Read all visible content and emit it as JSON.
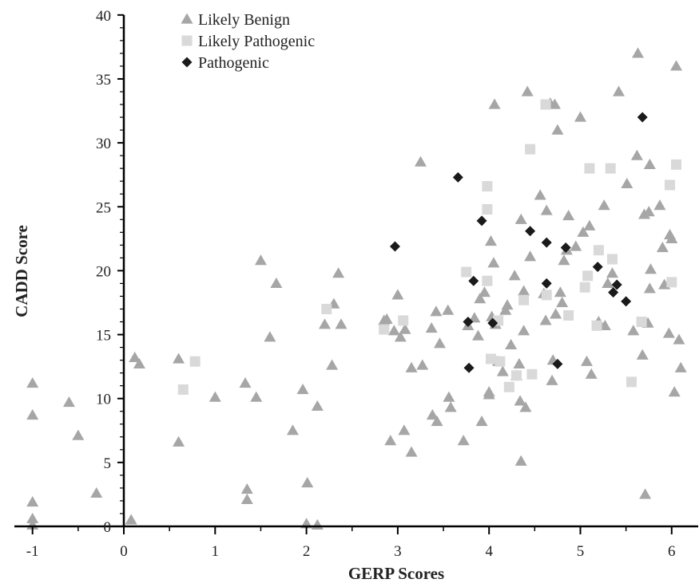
{
  "chart_data": {
    "type": "scatter",
    "title": "",
    "xlabel": "GERP Scores",
    "ylabel": "CADD Score",
    "xlim": [
      -1.1,
      6.3
    ],
    "ylim": [
      0,
      40
    ],
    "x_ticks": [
      -1,
      0,
      1,
      2,
      3,
      4,
      5,
      6
    ],
    "y_ticks": [
      0,
      5,
      10,
      15,
      20,
      25,
      30,
      35,
      40
    ],
    "grid": false,
    "legend_position": "top-left",
    "series": [
      {
        "name": "Likely Benign",
        "marker": "triangle",
        "color": "#a6a6a6",
        "points": [
          [
            -1,
            0.1
          ],
          [
            -1,
            0.6
          ],
          [
            -1,
            1.9
          ],
          [
            -1,
            8.7
          ],
          [
            -1,
            11.2
          ],
          [
            -0.6,
            9.7
          ],
          [
            -0.5,
            7.1
          ],
          [
            -0.3,
            2.6
          ],
          [
            0.08,
            0.5
          ],
          [
            0.12,
            13.2
          ],
          [
            0.17,
            12.7
          ],
          [
            0.6,
            13.1
          ],
          [
            0.6,
            6.6
          ],
          [
            1.0,
            10.1
          ],
          [
            1.33,
            11.2
          ],
          [
            1.35,
            2.9
          ],
          [
            1.35,
            2.1
          ],
          [
            1.45,
            10.1
          ],
          [
            1.5,
            20.8
          ],
          [
            1.6,
            14.8
          ],
          [
            1.67,
            19.0
          ],
          [
            1.85,
            7.5
          ],
          [
            1.96,
            10.7
          ],
          [
            2.0,
            0.2
          ],
          [
            2.01,
            3.4
          ],
          [
            2.12,
            0.1
          ],
          [
            2.12,
            9.4
          ],
          [
            2.2,
            15.8
          ],
          [
            2.28,
            12.6
          ],
          [
            2.3,
            17.4
          ],
          [
            2.35,
            19.8
          ],
          [
            2.38,
            15.8
          ],
          [
            2.85,
            16.1
          ],
          [
            2.88,
            16.2
          ],
          [
            2.92,
            6.7
          ],
          [
            2.96,
            15.3
          ],
          [
            3.0,
            18.1
          ],
          [
            3.03,
            14.8
          ],
          [
            3.07,
            7.5
          ],
          [
            3.08,
            15.4
          ],
          [
            3.15,
            12.4
          ],
          [
            3.15,
            5.8
          ],
          [
            3.25,
            28.5
          ],
          [
            3.27,
            12.6
          ],
          [
            3.37,
            15.5
          ],
          [
            3.38,
            8.7
          ],
          [
            3.42,
            16.8
          ],
          [
            3.43,
            8.2
          ],
          [
            3.46,
            14.3
          ],
          [
            3.55,
            16.9
          ],
          [
            3.56,
            10.1
          ],
          [
            3.58,
            9.3
          ],
          [
            3.72,
            6.7
          ],
          [
            3.77,
            15.7
          ],
          [
            3.84,
            16.3
          ],
          [
            3.88,
            14.9
          ],
          [
            3.9,
            17.8
          ],
          [
            3.92,
            8.2
          ],
          [
            3.95,
            18.3
          ],
          [
            4.0,
            10.5
          ],
          [
            4.0,
            10.3
          ],
          [
            4.02,
            22.3
          ],
          [
            4.03,
            16.4
          ],
          [
            4.05,
            20.6
          ],
          [
            4.06,
            33.0
          ],
          [
            4.07,
            15.8
          ],
          [
            4.1,
            12.9
          ],
          [
            4.15,
            12.1
          ],
          [
            4.18,
            16.9
          ],
          [
            4.2,
            17.3
          ],
          [
            4.24,
            14.2
          ],
          [
            4.28,
            19.6
          ],
          [
            4.3,
            11.8
          ],
          [
            4.33,
            12.7
          ],
          [
            4.34,
            9.8
          ],
          [
            4.35,
            5.1
          ],
          [
            4.35,
            24.0
          ],
          [
            4.38,
            15.3
          ],
          [
            4.38,
            18.4
          ],
          [
            4.4,
            9.3
          ],
          [
            4.42,
            34.0
          ],
          [
            4.45,
            21.1
          ],
          [
            4.56,
            25.9
          ],
          [
            4.6,
            18.2
          ],
          [
            4.62,
            16.1
          ],
          [
            4.63,
            24.7
          ],
          [
            4.67,
            33.1
          ],
          [
            4.69,
            11.4
          ],
          [
            4.7,
            13.0
          ],
          [
            4.72,
            33.0
          ],
          [
            4.73,
            16.6
          ],
          [
            4.75,
            31.0
          ],
          [
            4.78,
            18.3
          ],
          [
            4.8,
            17.5
          ],
          [
            4.82,
            20.8
          ],
          [
            4.85,
            21.6
          ],
          [
            4.87,
            24.3
          ],
          [
            4.95,
            21.9
          ],
          [
            5.0,
            32.0
          ],
          [
            5.03,
            23.0
          ],
          [
            5.07,
            12.9
          ],
          [
            5.1,
            23.5
          ],
          [
            5.12,
            11.9
          ],
          [
            5.2,
            16.0
          ],
          [
            5.26,
            25.1
          ],
          [
            5.27,
            15.7
          ],
          [
            5.3,
            19.0
          ],
          [
            5.35,
            19.8
          ],
          [
            5.42,
            34.0
          ],
          [
            5.51,
            26.8
          ],
          [
            5.58,
            15.3
          ],
          [
            5.62,
            29.0
          ],
          [
            5.63,
            37.0
          ],
          [
            5.68,
            13.4
          ],
          [
            5.7,
            24.4
          ],
          [
            5.71,
            2.5
          ],
          [
            5.74,
            15.9
          ],
          [
            5.75,
            24.6
          ],
          [
            5.76,
            28.3
          ],
          [
            5.76,
            18.6
          ],
          [
            5.77,
            20.1
          ],
          [
            5.87,
            25.1
          ],
          [
            5.9,
            21.8
          ],
          [
            5.92,
            18.9
          ],
          [
            5.97,
            15.1
          ],
          [
            5.98,
            22.8
          ],
          [
            6.0,
            22.5
          ],
          [
            6.03,
            10.5
          ],
          [
            6.05,
            36.0
          ],
          [
            6.08,
            14.6
          ],
          [
            6.1,
            12.4
          ]
        ]
      },
      {
        "name": "Likely Pathogenic",
        "marker": "square",
        "color": "#d9d9d9",
        "points": [
          [
            0.65,
            10.7
          ],
          [
            0.78,
            12.9
          ],
          [
            2.22,
            17.0
          ],
          [
            2.85,
            15.4
          ],
          [
            3.06,
            16.1
          ],
          [
            3.75,
            19.9
          ],
          [
            3.98,
            26.6
          ],
          [
            3.98,
            24.8
          ],
          [
            3.98,
            19.2
          ],
          [
            4.02,
            13.1
          ],
          [
            4.1,
            16.1
          ],
          [
            4.12,
            12.9
          ],
          [
            4.22,
            10.9
          ],
          [
            4.3,
            11.8
          ],
          [
            4.38,
            17.7
          ],
          [
            4.45,
            29.5
          ],
          [
            4.47,
            11.9
          ],
          [
            4.62,
            33.0
          ],
          [
            4.63,
            18.1
          ],
          [
            4.87,
            16.5
          ],
          [
            5.05,
            18.7
          ],
          [
            5.08,
            19.6
          ],
          [
            5.1,
            28.0
          ],
          [
            5.18,
            15.7
          ],
          [
            5.2,
            21.6
          ],
          [
            5.33,
            28.0
          ],
          [
            5.35,
            20.9
          ],
          [
            5.56,
            11.3
          ],
          [
            5.67,
            16.0
          ],
          [
            5.98,
            26.7
          ],
          [
            6.0,
            19.1
          ],
          [
            6.05,
            28.3
          ]
        ]
      },
      {
        "name": "Pathogenic",
        "marker": "diamond",
        "color": "#1a1a1a",
        "points": [
          [
            2.97,
            21.9
          ],
          [
            3.66,
            27.3
          ],
          [
            3.77,
            16.0
          ],
          [
            3.78,
            12.4
          ],
          [
            3.83,
            19.2
          ],
          [
            3.92,
            23.9
          ],
          [
            4.04,
            15.9
          ],
          [
            4.45,
            23.1
          ],
          [
            4.63,
            22.2
          ],
          [
            4.63,
            19.0
          ],
          [
            4.75,
            12.7
          ],
          [
            4.84,
            21.8
          ],
          [
            5.19,
            20.3
          ],
          [
            5.36,
            18.3
          ],
          [
            5.4,
            18.9
          ],
          [
            5.5,
            17.6
          ],
          [
            5.68,
            32.0
          ]
        ]
      }
    ]
  }
}
